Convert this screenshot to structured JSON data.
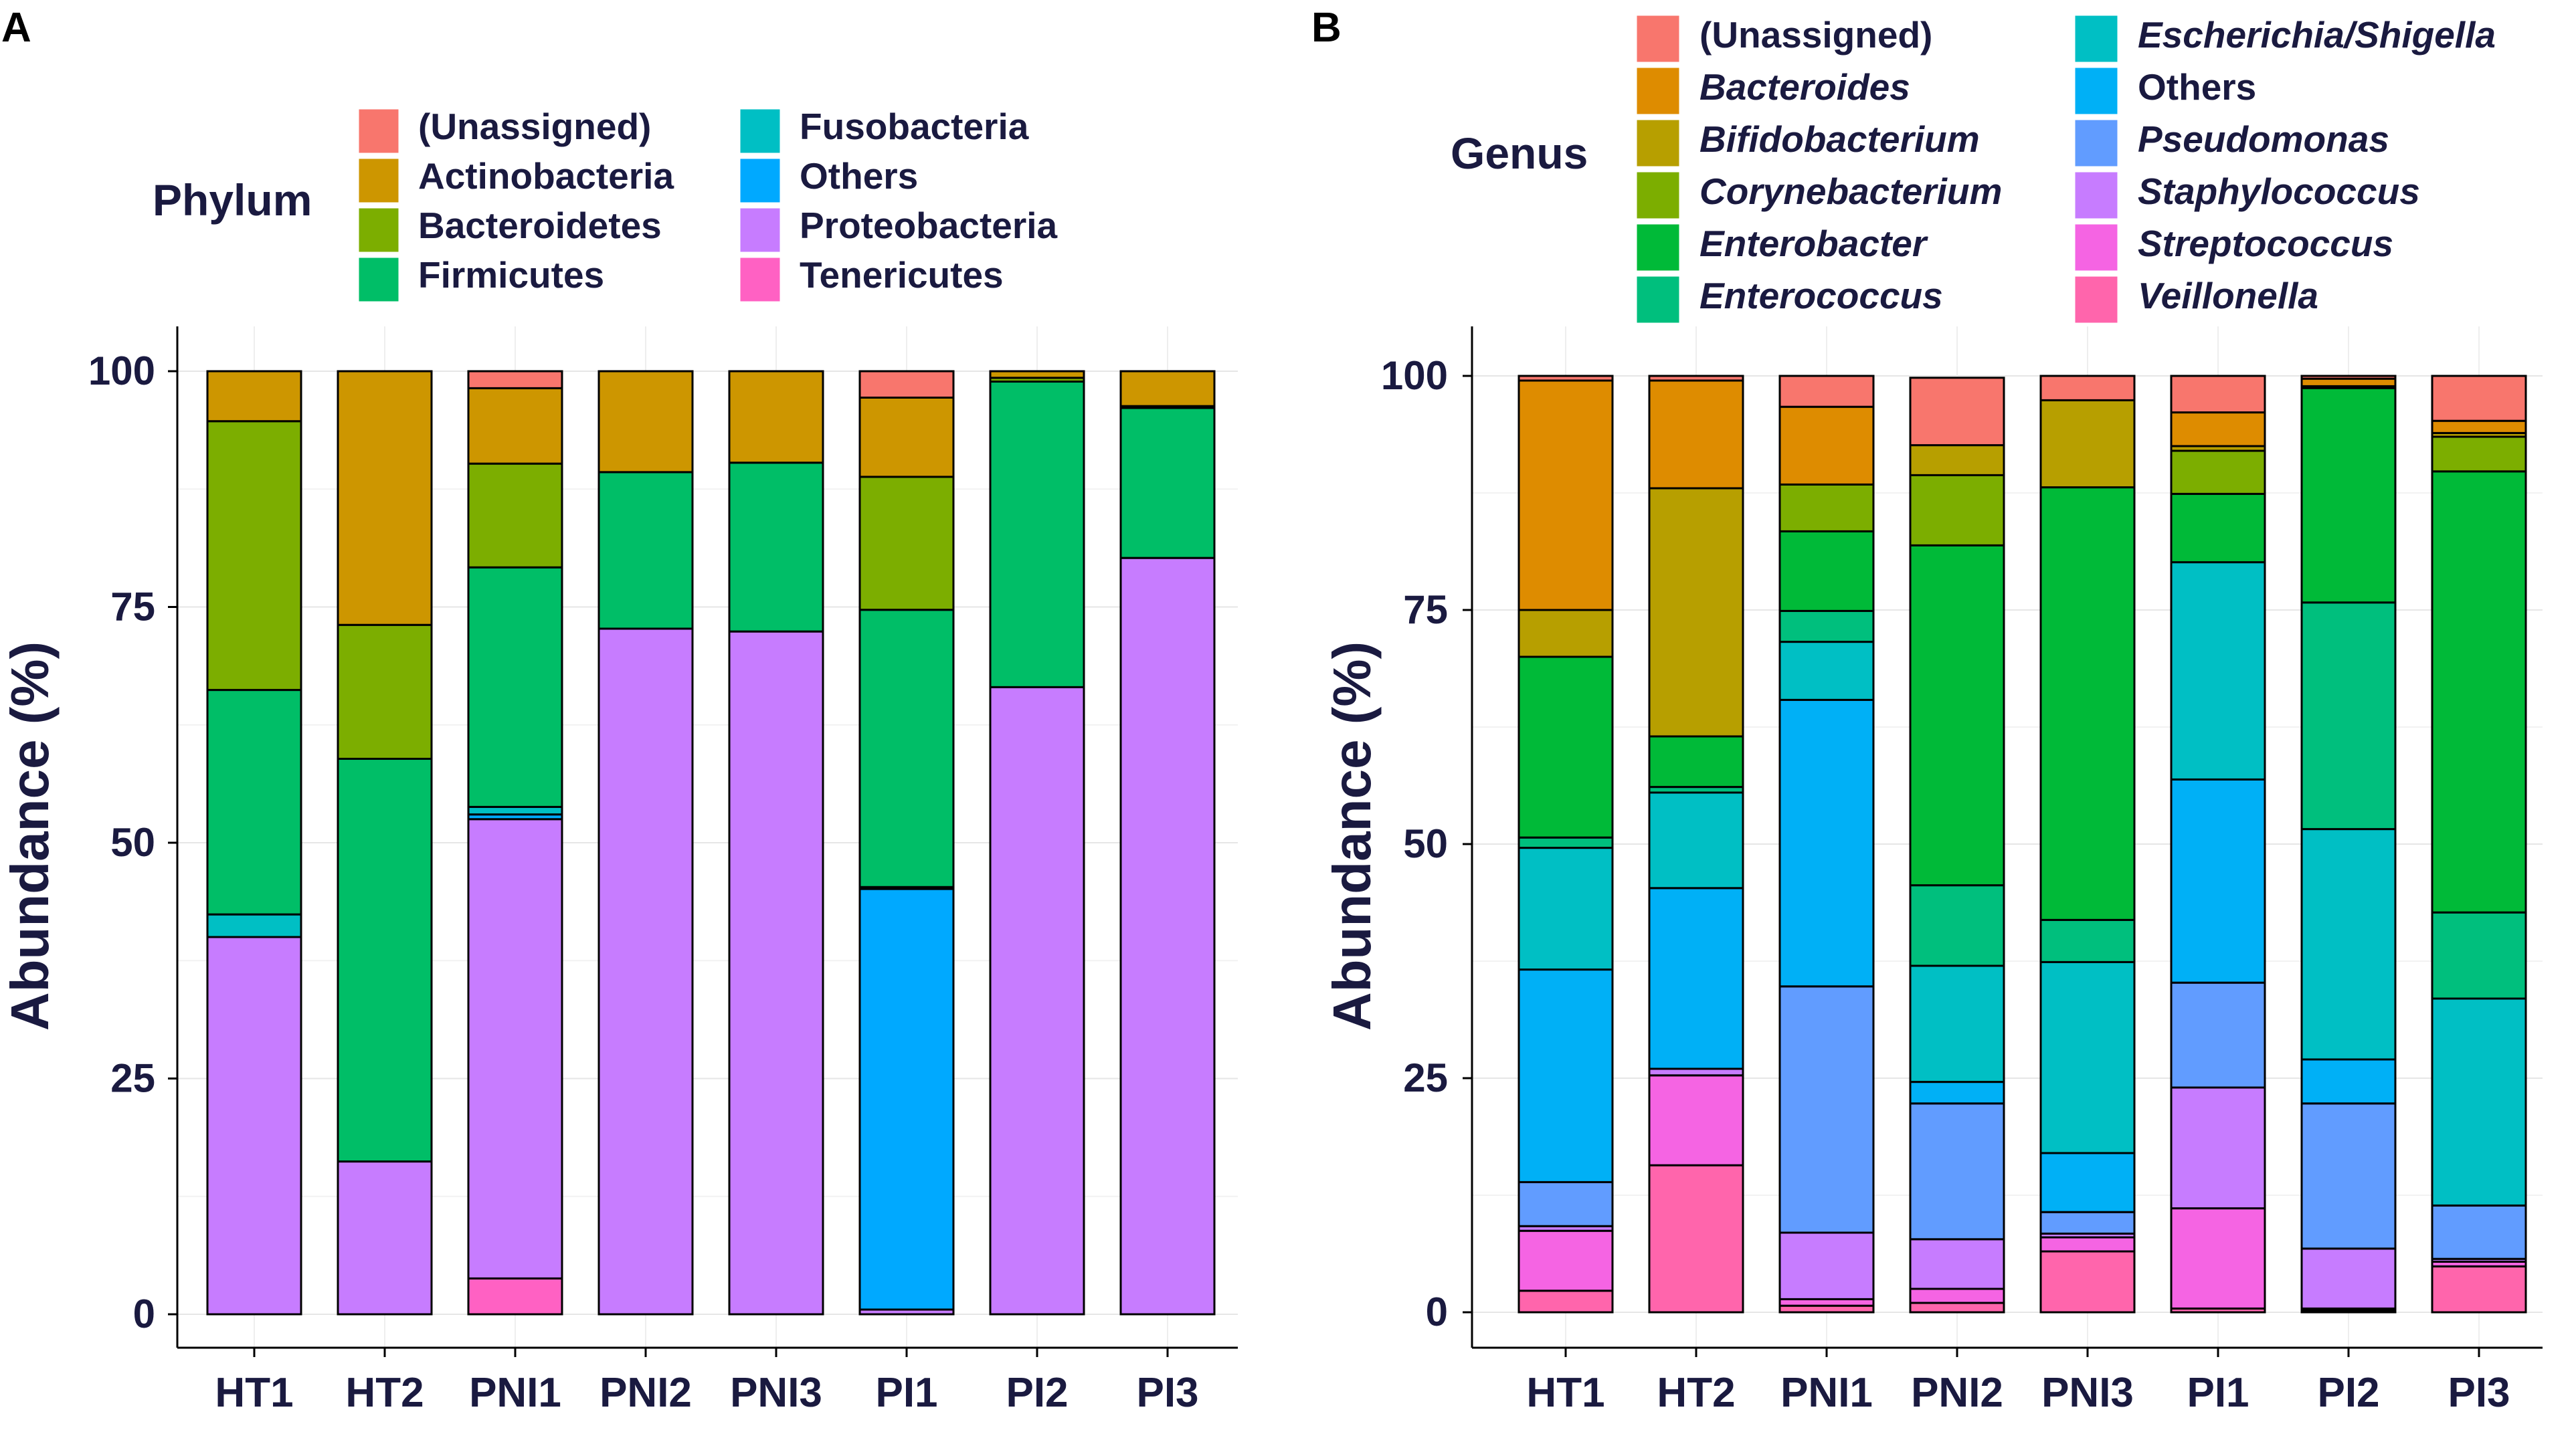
{
  "chart_data": [
    {
      "panel_label": "A",
      "type": "bar",
      "stacked": true,
      "legend_title": "Phylum",
      "ylabel": "Abundance (%)",
      "xlabel": "",
      "ylim": [
        0,
        100
      ],
      "yticks": [
        0,
        25,
        50,
        75,
        100
      ],
      "grid": true,
      "legend_position": "top",
      "categories": [
        "HT1",
        "HT2",
        "PNI1",
        "PNI2",
        "PNI3",
        "PI1",
        "PI2",
        "PI3"
      ],
      "series": [
        {
          "name": "Tenericutes",
          "color": "#FF61C3",
          "italic": false,
          "values": [
            0,
            0,
            3.8,
            0,
            0,
            0,
            0,
            0
          ]
        },
        {
          "name": "Proteobacteria",
          "color": "#C77CFF",
          "italic": false,
          "values": [
            40,
            16.2,
            48.7,
            72.7,
            72.4,
            0.5,
            66.5,
            80.2
          ]
        },
        {
          "name": "Others",
          "color": "#00A9FF",
          "italic": false,
          "values": [
            0,
            0,
            0.5,
            0,
            0,
            44.6,
            0,
            0
          ]
        },
        {
          "name": "Fusobacteria",
          "color": "#00BFC4",
          "italic": false,
          "values": [
            2.4,
            0,
            0.8,
            0,
            0,
            0.2,
            0,
            0
          ]
        },
        {
          "name": "Firmicutes",
          "color": "#00BE67",
          "italic": false,
          "values": [
            23.8,
            42.7,
            25.4,
            16.6,
            17.9,
            29.4,
            32.4,
            15.9
          ]
        },
        {
          "name": "Bacteroidetes",
          "color": "#7CAE00",
          "italic": false,
          "values": [
            28.5,
            14.2,
            11,
            0,
            0,
            14.1,
            0.4,
            0.2
          ]
        },
        {
          "name": "Actinobacteria",
          "color": "#CD9600",
          "italic": false,
          "values": [
            5.3,
            26.9,
            8,
            10.7,
            9.7,
            8.4,
            0.7,
            3.7
          ]
        },
        {
          "name": "(Unassigned)",
          "color": "#F8766D",
          "italic": false,
          "values": [
            0,
            0,
            1.8,
            0,
            0,
            2.8,
            0,
            0
          ]
        }
      ],
      "legend_order": [
        "(Unassigned)",
        "Actinobacteria",
        "Bacteroidetes",
        "Firmicutes",
        "Fusobacteria",
        "Others",
        "Proteobacteria",
        "Tenericutes"
      ]
    },
    {
      "panel_label": "B",
      "type": "bar",
      "stacked": true,
      "legend_title": "Genus",
      "ylabel": "Abundance (%)",
      "xlabel": "",
      "ylim": [
        0,
        100
      ],
      "yticks": [
        0,
        25,
        50,
        75,
        100
      ],
      "grid": true,
      "legend_position": "top",
      "categories": [
        "HT1",
        "HT2",
        "PNI1",
        "PNI2",
        "PNI3",
        "PI1",
        "PI2",
        "PI3"
      ],
      "series": [
        {
          "name": "Veillonella",
          "color": "#FF65AC",
          "italic": true,
          "values": [
            2.3,
            15.7,
            0.7,
            1,
            6.5,
            0.4,
            0.2,
            4.9
          ]
        },
        {
          "name": "Streptococcus",
          "color": "#F564E3",
          "italic": true,
          "values": [
            6.4,
            9.6,
            0.7,
            1.5,
            1.5,
            10.7,
            0.2,
            0.5
          ]
        },
        {
          "name": "Staphylococcus",
          "color": "#C77CFF",
          "italic": true,
          "values": [
            0.5,
            0.7,
            7.1,
            5.3,
            0.4,
            12.9,
            6.4,
            0.3
          ]
        },
        {
          "name": "Pseudomonas",
          "color": "#619CFF",
          "italic": true,
          "values": [
            4.7,
            0,
            26.3,
            14.5,
            2.3,
            11.2,
            15.5,
            5.7
          ]
        },
        {
          "name": "Others",
          "color": "#00B0F6",
          "italic": false,
          "values": [
            22.7,
            19.3,
            30.6,
            2.3,
            6.3,
            21.7,
            4.7,
            0
          ]
        },
        {
          "name": "Escherichia/Shigella",
          "color": "#00BFC4",
          "italic": true,
          "values": [
            13,
            10.2,
            6.2,
            12.4,
            20.4,
            23.2,
            24.6,
            22.1
          ]
        },
        {
          "name": "Enterococcus",
          "color": "#00BF7D",
          "italic": true,
          "values": [
            1.1,
            0.6,
            3.3,
            8.6,
            4.5,
            0,
            24.2,
            9.2
          ]
        },
        {
          "name": "Enterobacter",
          "color": "#00BA38",
          "italic": true,
          "values": [
            19.3,
            5.4,
            8.5,
            36.3,
            46.2,
            7.3,
            22.9,
            47.1
          ]
        },
        {
          "name": "Corynebacterium",
          "color": "#7CAE00",
          "italic": true,
          "values": [
            0,
            0,
            5,
            7.5,
            0,
            4.6,
            0.2,
            3.7
          ]
        },
        {
          "name": "Bifidobacterium",
          "color": "#B79F00",
          "italic": true,
          "values": [
            5,
            26.5,
            0,
            3.2,
            9.3,
            0.5,
            0,
            0.4
          ]
        },
        {
          "name": "Bacteroides",
          "color": "#DE8C00",
          "italic": true,
          "values": [
            24.5,
            11.5,
            8.3,
            0,
            0,
            3.6,
            0.8,
            1.3
          ]
        },
        {
          "name": "(Unassigned)",
          "color": "#F8766D",
          "italic": false,
          "values": [
            0.5,
            0.5,
            3.3,
            7.2,
            2.6,
            3.9,
            0.3,
            4.8
          ]
        }
      ],
      "legend_order": [
        "(Unassigned)",
        "Bacteroides",
        "Bifidobacterium",
        "Corynebacterium",
        "Enterobacter",
        "Enterococcus",
        "Escherichia/Shigella",
        "Others",
        "Pseudomonas",
        "Staphylococcus",
        "Streptococcus",
        "Veillonella"
      ]
    }
  ]
}
